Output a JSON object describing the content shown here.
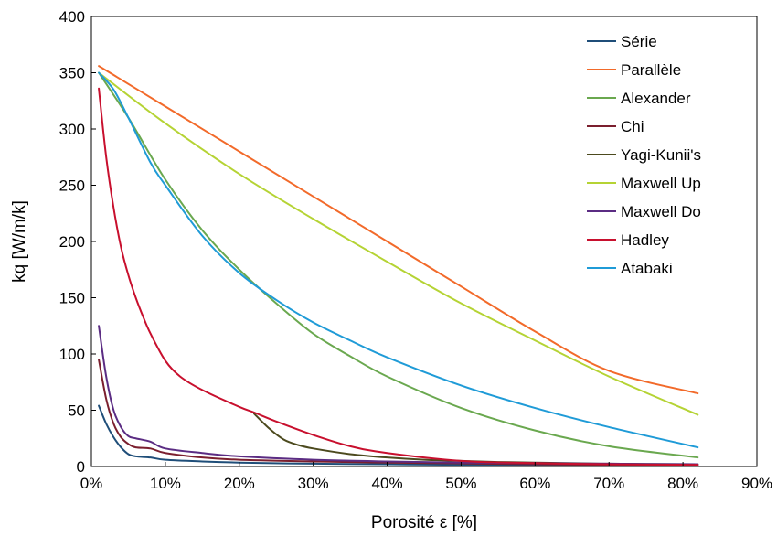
{
  "chart_data": {
    "type": "line",
    "title": "",
    "xlabel": "Porosité ε [%]",
    "ylabel": "kq [W/m/k]",
    "xlim": [
      0,
      0.9
    ],
    "ylim": [
      0,
      400
    ],
    "x_ticks": [
      0,
      0.1,
      0.2,
      0.3,
      0.4,
      0.5,
      0.6,
      0.7,
      0.8,
      0.9
    ],
    "x_tick_labels": [
      "0%",
      "10%",
      "20%",
      "30%",
      "40%",
      "50%",
      "60%",
      "70%",
      "80%",
      "90%"
    ],
    "y_ticks": [
      0,
      50,
      100,
      150,
      200,
      250,
      300,
      350,
      400
    ],
    "y_tick_labels": [
      "0",
      "50",
      "100",
      "150",
      "200",
      "250",
      "300",
      "350",
      "400"
    ],
    "grid": false,
    "legend_position": "top-right",
    "series": [
      {
        "name": "Série",
        "color": "#1F4E79",
        "x": [
          0.01,
          0.02,
          0.03,
          0.04,
          0.05,
          0.06,
          0.08,
          0.1,
          0.15,
          0.2,
          0.3,
          0.4,
          0.5,
          0.6,
          0.7,
          0.82
        ],
        "y": [
          54,
          38,
          26,
          17,
          11,
          9,
          8,
          6,
          4.5,
          3.5,
          2.5,
          2,
          1.5,
          1.2,
          1,
          0.8
        ]
      },
      {
        "name": "Parallèle",
        "color": "#F26A2A",
        "x": [
          0.01,
          0.1,
          0.2,
          0.3,
          0.4,
          0.5,
          0.6,
          0.7,
          0.82
        ],
        "y": [
          356,
          320,
          280,
          240,
          200,
          160,
          120,
          85,
          65
        ]
      },
      {
        "name": "Alexander",
        "color": "#6AA84F",
        "x": [
          0.01,
          0.05,
          0.1,
          0.15,
          0.2,
          0.25,
          0.3,
          0.35,
          0.4,
          0.5,
          0.6,
          0.7,
          0.82
        ],
        "y": [
          350,
          310,
          255,
          210,
          175,
          145,
          118,
          98,
          80,
          52,
          32,
          18,
          8
        ]
      },
      {
        "name": "Chi",
        "color": "#7B1F2E",
        "x": [
          0.01,
          0.02,
          0.03,
          0.04,
          0.05,
          0.06,
          0.08,
          0.1,
          0.15,
          0.2,
          0.3,
          0.4,
          0.5,
          0.6,
          0.7,
          0.82
        ],
        "y": [
          95,
          60,
          38,
          26,
          20,
          17,
          16,
          12,
          8,
          6,
          4.5,
          3.5,
          2.8,
          2,
          1.5,
          1
        ]
      },
      {
        "name": "Yagi-Kunii's",
        "color": "#4C4A1E",
        "x": [
          0.22,
          0.24,
          0.26,
          0.28,
          0.3,
          0.35,
          0.4,
          0.45,
          0.5,
          0.55,
          0.6,
          0.7,
          0.82
        ],
        "y": [
          47,
          34,
          24,
          19,
          16,
          11,
          8,
          6,
          5,
          4,
          3.5,
          2.5,
          2
        ]
      },
      {
        "name": "Maxwell Up",
        "color": "#B5D334",
        "x": [
          0.01,
          0.1,
          0.2,
          0.3,
          0.4,
          0.5,
          0.6,
          0.7,
          0.82
        ],
        "y": [
          350,
          305,
          260,
          220,
          182,
          145,
          112,
          80,
          46
        ]
      },
      {
        "name": "Maxwell Do",
        "color": "#5B2C83",
        "x": [
          0.01,
          0.02,
          0.03,
          0.04,
          0.05,
          0.06,
          0.08,
          0.1,
          0.15,
          0.2,
          0.3,
          0.4,
          0.5,
          0.6,
          0.7,
          0.82
        ],
        "y": [
          125,
          80,
          50,
          35,
          27,
          25,
          22,
          16,
          12,
          9,
          6,
          4.5,
          3.5,
          3,
          2.5,
          2
        ]
      },
      {
        "name": "Hadley",
        "color": "#C8102E",
        "x": [
          0.01,
          0.02,
          0.03,
          0.04,
          0.05,
          0.06,
          0.07,
          0.08,
          0.1,
          0.12,
          0.15,
          0.2,
          0.22,
          0.25,
          0.3,
          0.35,
          0.4,
          0.5,
          0.6,
          0.7,
          0.82
        ],
        "y": [
          336,
          275,
          230,
          195,
          170,
          150,
          133,
          118,
          94,
          80,
          68,
          53,
          48,
          40,
          28,
          18,
          12,
          5,
          3,
          2,
          1.5
        ]
      },
      {
        "name": "Atabaki",
        "color": "#1F9BD7",
        "x": [
          0.01,
          0.03,
          0.05,
          0.08,
          0.1,
          0.15,
          0.2,
          0.25,
          0.3,
          0.35,
          0.4,
          0.5,
          0.6,
          0.7,
          0.82
        ],
        "y": [
          350,
          335,
          310,
          270,
          250,
          205,
          172,
          148,
          128,
          112,
          97,
          72,
          52,
          35,
          17
        ]
      }
    ]
  }
}
